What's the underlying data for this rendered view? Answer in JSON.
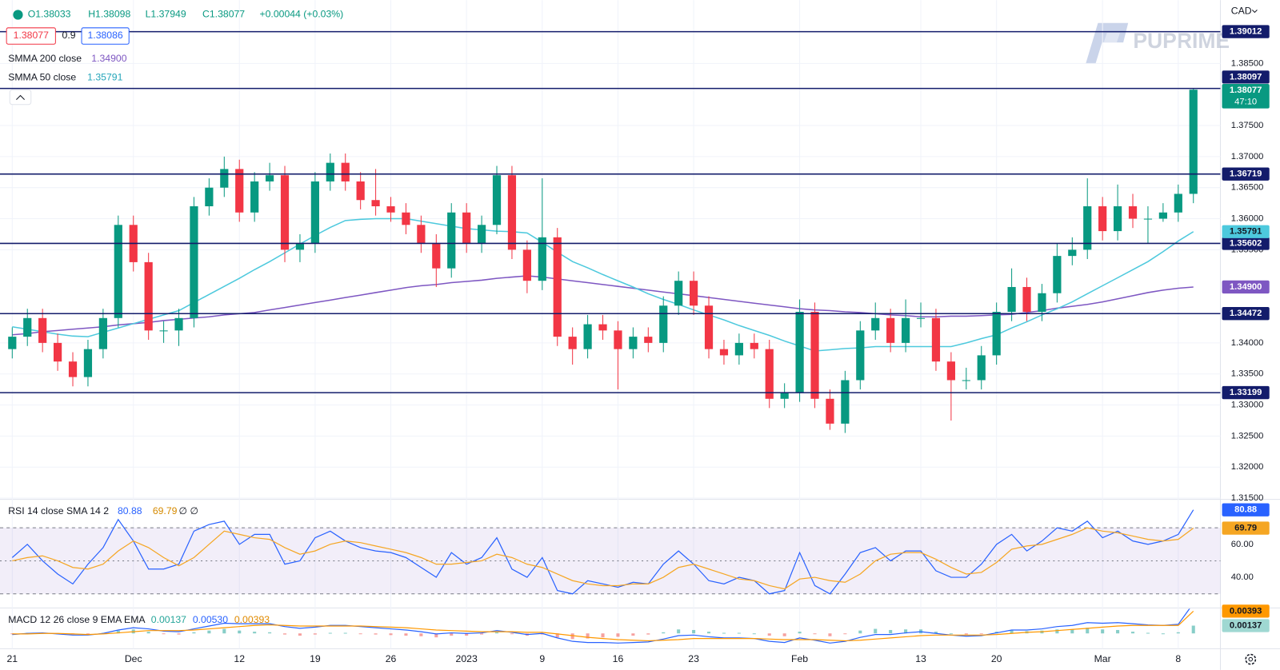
{
  "header": {
    "ohlc": [
      "O1.38033",
      "H1.38098",
      "L1.37949",
      "C1.38077"
    ],
    "change": "+0.00044 (+0.03%)",
    "currency": "CAD",
    "bid": "1.38077",
    "spread": "0.9",
    "ask": "1.38086"
  },
  "brand": "PUPRIME",
  "chart_data": [
    {
      "type": "candlestick",
      "categories": [
        "21",
        null,
        null,
        null,
        null,
        null,
        null,
        null,
        "Dec",
        null,
        null,
        null,
        null,
        null,
        null,
        "12",
        null,
        null,
        null,
        null,
        "19",
        null,
        null,
        null,
        null,
        "26",
        null,
        null,
        null,
        null,
        "2023",
        null,
        null,
        null,
        null,
        "9",
        null,
        null,
        null,
        null,
        "16",
        null,
        null,
        null,
        null,
        "23",
        null,
        null,
        null,
        null,
        null,
        null,
        "Feb",
        null,
        null,
        null,
        null,
        null,
        null,
        null,
        "13",
        null,
        null,
        null,
        null,
        "20",
        null,
        null,
        null,
        null,
        null,
        null,
        "Mar",
        null,
        null,
        null,
        null,
        "8",
        null
      ],
      "open": [
        1.339,
        1.341,
        1.344,
        1.34,
        1.337,
        1.3345,
        1.339,
        1.344,
        1.359,
        1.353,
        1.342,
        1.342,
        1.344,
        1.362,
        1.365,
        1.368,
        1.361,
        1.366,
        1.367,
        1.355,
        1.356,
        1.366,
        1.369,
        1.366,
        1.363,
        1.362,
        1.361,
        1.359,
        1.356,
        1.352,
        1.361,
        1.356,
        1.359,
        1.367,
        1.355,
        1.35,
        1.357,
        1.341,
        1.339,
        1.343,
        1.342,
        1.339,
        1.341,
        1.34,
        1.346,
        1.35,
        1.346,
        1.339,
        1.338,
        1.34,
        1.339,
        1.331,
        1.332,
        1.345,
        1.331,
        1.327,
        1.334,
        1.342,
        1.344,
        1.34,
        1.344,
        1.344,
        1.337,
        1.334,
        1.334,
        1.338,
        1.345,
        1.349,
        1.345,
        1.348,
        1.354,
        1.355,
        1.362,
        1.358,
        1.362,
        1.36,
        1.36,
        1.361,
        1.364
      ],
      "high": [
        1.3425,
        1.3455,
        1.3455,
        1.3415,
        1.3385,
        1.3405,
        1.3455,
        1.3605,
        1.3605,
        1.3545,
        1.3435,
        1.3455,
        1.3635,
        1.3665,
        1.37,
        1.3695,
        1.3675,
        1.369,
        1.3685,
        1.3575,
        1.3675,
        1.3705,
        1.3705,
        1.3675,
        1.368,
        1.3635,
        1.3625,
        1.3605,
        1.3575,
        1.3625,
        1.3625,
        1.3605,
        1.3685,
        1.3685,
        1.3565,
        1.3665,
        1.3585,
        1.3425,
        1.3445,
        1.3445,
        1.3435,
        1.3425,
        1.3425,
        1.3475,
        1.3515,
        1.3515,
        1.3475,
        1.3405,
        1.3415,
        1.3415,
        1.3405,
        1.3335,
        1.347,
        1.3465,
        1.3325,
        1.3355,
        1.3435,
        1.3465,
        1.3455,
        1.347,
        1.3465,
        1.3455,
        1.3385,
        1.336,
        1.3395,
        1.3465,
        1.352,
        1.3505,
        1.3495,
        1.356,
        1.357,
        1.3665,
        1.3635,
        1.3655,
        1.364,
        1.362,
        1.3625,
        1.3655,
        1.381
      ],
      "low": [
        1.3375,
        1.3395,
        1.3385,
        1.3355,
        1.333,
        1.333,
        1.3375,
        1.3425,
        1.3515,
        1.3405,
        1.34,
        1.3395,
        1.3425,
        1.3605,
        1.3635,
        1.3595,
        1.3595,
        1.3645,
        1.353,
        1.353,
        1.3545,
        1.3645,
        1.3645,
        1.3615,
        1.3605,
        1.3595,
        1.3575,
        1.3545,
        1.349,
        1.3505,
        1.3545,
        1.3545,
        1.3575,
        1.3535,
        1.348,
        1.3485,
        1.3395,
        1.3365,
        1.3375,
        1.3405,
        1.3325,
        1.3375,
        1.3385,
        1.3385,
        1.3445,
        1.3445,
        1.3375,
        1.3365,
        1.3365,
        1.3375,
        1.3295,
        1.3295,
        1.3305,
        1.3295,
        1.326,
        1.3255,
        1.3325,
        1.3405,
        1.3385,
        1.3385,
        1.3425,
        1.3355,
        1.3275,
        1.3325,
        1.3325,
        1.3365,
        1.3435,
        1.3435,
        1.3435,
        1.3465,
        1.3525,
        1.3535,
        1.3565,
        1.3565,
        1.3585,
        1.356,
        1.3595,
        1.3595,
        1.3625
      ],
      "close": [
        1.341,
        1.344,
        1.34,
        1.337,
        1.3345,
        1.339,
        1.344,
        1.359,
        1.353,
        1.342,
        1.342,
        1.344,
        1.362,
        1.365,
        1.368,
        1.361,
        1.366,
        1.367,
        1.355,
        1.356,
        1.366,
        1.369,
        1.366,
        1.363,
        1.362,
        1.361,
        1.359,
        1.356,
        1.352,
        1.361,
        1.356,
        1.359,
        1.367,
        1.355,
        1.35,
        1.357,
        1.341,
        1.339,
        1.343,
        1.342,
        1.339,
        1.341,
        1.34,
        1.346,
        1.35,
        1.346,
        1.339,
        1.338,
        1.34,
        1.339,
        1.331,
        1.332,
        1.345,
        1.331,
        1.327,
        1.334,
        1.342,
        1.344,
        1.34,
        1.344,
        1.344,
        1.337,
        1.334,
        1.334,
        1.338,
        1.345,
        1.349,
        1.345,
        1.348,
        1.354,
        1.355,
        1.362,
        1.358,
        1.362,
        1.36,
        1.36,
        1.361,
        1.364,
        1.38077
      ],
      "up_color": "#089981",
      "down_color": "#f23645",
      "countdown": "47:10",
      "ylim": [
        1.3148,
        1.3952
      ],
      "yticks": [
        {
          "value": 1.385,
          "label": "1.38500"
        },
        {
          "value": 1.375,
          "label": "1.37500"
        },
        {
          "value": 1.37,
          "label": "1.37000"
        },
        {
          "value": 1.365,
          "label": "1.36500"
        },
        {
          "value": 1.36,
          "label": "1.36000"
        },
        {
          "value": 1.355,
          "label": "1.35500"
        },
        {
          "value": 1.34,
          "label": "1.34000"
        },
        {
          "value": 1.335,
          "label": "1.33500"
        },
        {
          "value": 1.33,
          "label": "1.33000"
        },
        {
          "value": 1.325,
          "label": "1.32500"
        },
        {
          "value": 1.32,
          "label": "1.32000"
        },
        {
          "value": 1.315,
          "label": "1.31500"
        }
      ],
      "grid": true,
      "levels": [
        1.39012,
        1.38097,
        1.36719,
        1.35602,
        1.34472,
        1.33199
      ],
      "level_color": "#131c6b",
      "series": [
        {
          "name": "SMMA 200 close",
          "color": "#7e57c2",
          "last": {
            "value": 1.349,
            "label": "1.34900"
          },
          "values": [
            1.3413,
            1.3415,
            1.3418,
            1.342,
            1.3422,
            1.3424,
            1.3426,
            1.3429,
            1.3431,
            1.3433,
            1.3436,
            1.3438,
            1.344,
            1.3442,
            1.3445,
            1.3447,
            1.3449,
            1.3453,
            1.3457,
            1.3461,
            1.3465,
            1.3469,
            1.3473,
            1.3477,
            1.3481,
            1.3485,
            1.3489,
            1.3492,
            1.3494,
            1.3497,
            1.3499,
            1.3501,
            1.3504,
            1.3506,
            1.3508,
            1.3506,
            1.3503,
            1.35,
            1.3497,
            1.3494,
            1.3491,
            1.3488,
            1.3485,
            1.3482,
            1.3479,
            1.3476,
            1.3473,
            1.347,
            1.3467,
            1.3464,
            1.3461,
            1.3458,
            1.3455,
            1.3453,
            1.3452,
            1.345,
            1.3449,
            1.3447,
            1.3445,
            1.3444,
            1.3442,
            1.3442,
            1.3443,
            1.3443,
            1.3444,
            1.3445,
            1.3446,
            1.3449,
            1.3452,
            1.3456,
            1.3459,
            1.3462,
            1.3466,
            1.3471,
            1.3476,
            1.3481,
            1.3485,
            1.3488,
            1.349
          ]
        },
        {
          "name": "SMMA 50 close",
          "color": "#4dc9dd",
          "last": 1.35791,
          "values": [
            1.3426,
            1.3422,
            1.3418,
            1.3414,
            1.3411,
            1.341,
            1.3417,
            1.3424,
            1.3431,
            1.3438,
            1.3445,
            1.3452,
            1.3465,
            1.3478,
            1.3491,
            1.3504,
            1.3518,
            1.3531,
            1.3545,
            1.3559,
            1.3573,
            1.3586,
            1.3597,
            1.3599,
            1.36,
            1.36,
            1.36,
            1.3596,
            1.3592,
            1.3588,
            1.3584,
            1.3582,
            1.358,
            1.3579,
            1.3577,
            1.3562,
            1.3546,
            1.3531,
            1.3521,
            1.351,
            1.35,
            1.349,
            1.3479,
            1.347,
            1.3462,
            1.3453,
            1.3445,
            1.3437,
            1.3428,
            1.342,
            1.3412,
            1.3403,
            1.3395,
            1.3387,
            1.3389,
            1.3391,
            1.3392,
            1.3394,
            1.3394,
            1.3394,
            1.3394,
            1.3394,
            1.3394,
            1.34,
            1.3407,
            1.3413,
            1.3424,
            1.3434,
            1.3445,
            1.3455,
            1.3466,
            1.3479,
            1.3492,
            1.3505,
            1.3518,
            1.3531,
            1.3547,
            1.3564,
            1.35791
          ]
        }
      ]
    },
    {
      "type": "line",
      "title": "RSI 14 close SMA 14 2",
      "extra": "∅ ∅",
      "ylim": [
        21.5,
        87.2
      ],
      "yticks": [
        {
          "value": 60,
          "label": "60.00"
        },
        {
          "value": 40,
          "label": "40.00"
        }
      ],
      "levels": [
        70,
        50,
        30
      ],
      "band_color": "rgba(126,87,194,0.1)",
      "series": [
        {
          "color": "#2962ff",
          "values": [
            52,
            60,
            50,
            42,
            36,
            48,
            58,
            75,
            62,
            45,
            45,
            48,
            68,
            72,
            74,
            60,
            66,
            66,
            48,
            50,
            64,
            68,
            62,
            58,
            56,
            55,
            52,
            46,
            40,
            55,
            48,
            52,
            64,
            45,
            40,
            52,
            32,
            30,
            38,
            36,
            34,
            37,
            36,
            48,
            56,
            48,
            38,
            36,
            40,
            38,
            30,
            32,
            55,
            35,
            30,
            42,
            55,
            58,
            50,
            56,
            56,
            44,
            40,
            40,
            48,
            60,
            66,
            56,
            62,
            70,
            68,
            74,
            64,
            68,
            62,
            60,
            62,
            66,
            80.88
          ]
        },
        {
          "color": "#f5a623",
          "values": [
            50,
            52,
            53,
            50,
            46,
            45,
            48,
            56,
            62,
            58,
            52,
            47,
            52,
            60,
            68,
            66,
            64,
            63,
            58,
            54,
            56,
            60,
            62,
            61,
            59,
            57,
            55,
            52,
            48,
            48,
            49,
            50,
            54,
            52,
            48,
            46,
            42,
            38,
            36,
            35,
            35,
            36,
            36,
            40,
            46,
            48,
            45,
            42,
            39,
            38,
            35,
            33,
            39,
            40,
            38,
            37,
            42,
            50,
            54,
            55,
            55,
            51,
            46,
            42,
            43,
            49,
            57,
            59,
            60,
            63,
            66,
            70,
            68,
            67,
            65,
            63,
            62,
            63,
            69.79
          ]
        }
      ]
    },
    {
      "type": "macd",
      "title": "MACD 12 26 close 9 EMA EMA",
      "ylim": [
        -0.0027,
        0.0045
      ],
      "series": [
        {
          "type": "bar",
          "color": "#9fd8d2",
          "up_color": "#26a69a",
          "down_color": "#ef5350",
          "values": [
            -0.0001,
            0.0001,
            0.0001,
            -0.0001,
            -0.0002,
            -0.0001,
            0.0001,
            0.0005,
            0.0007,
            0.0003,
            -0.0001,
            -0.0002,
            0.0002,
            0.0005,
            0.0008,
            0.0005,
            0.0003,
            0.0002,
            -0.0002,
            -0.0004,
            -0.0002,
            0.0001,
            0.0001,
            -0.0001,
            -0.0002,
            -0.0003,
            -0.0004,
            -0.0005,
            -0.0007,
            -0.0004,
            -0.0004,
            -0.0002,
            0.0002,
            -0.0001,
            -0.0004,
            -0.0002,
            -0.0007,
            -0.001,
            -0.0009,
            -0.0007,
            -0.0006,
            -0.0004,
            -0.0002,
            0.0002,
            0.0007,
            0.0006,
            0.0003,
            0.0001,
            0.0001,
            0,
            -0.0004,
            -0.0005,
            0.0003,
            -0.0001,
            -0.0005,
            -0.0001,
            0.0005,
            0.0008,
            0.0006,
            0.0007,
            0.0007,
            0.0003,
            0,
            -0.0002,
            -0.0001,
            0.0003,
            0.0006,
            0.0004,
            0.0005,
            0.0007,
            0.0007,
            0.001,
            0.0007,
            0.0006,
            0.0003,
            0.0001,
            0,
            0.0002,
            0.00137
          ]
        },
        {
          "type": "line",
          "color": "#2962ff",
          "last": {
            "value": 0.0053,
            "label": "0.00530"
          },
          "values": [
            -0.0002,
            0,
            0.0001,
            -0.0001,
            -0.0003,
            -0.0003,
            0,
            0.0006,
            0.001,
            0.0008,
            0.0004,
            0.0003,
            0.0008,
            0.0013,
            0.0018,
            0.0017,
            0.0017,
            0.0017,
            0.0012,
            0.0009,
            0.0011,
            0.0014,
            0.0014,
            0.0012,
            0.001,
            0.0008,
            0.0006,
            0.0003,
            -0.0001,
            0.0001,
            0,
            0.0001,
            0.0005,
            0.0002,
            -0.0002,
            0,
            -0.0008,
            -0.0014,
            -0.0016,
            -0.0016,
            -0.0017,
            -0.0016,
            -0.0015,
            -0.001,
            -0.0004,
            -0.0003,
            -0.0006,
            -0.0008,
            -0.0008,
            -0.0009,
            -0.0014,
            -0.0016,
            -0.0008,
            -0.0012,
            -0.0017,
            -0.0014,
            -0.0007,
            -0.0002,
            -0.0002,
            0.0001,
            0.0003,
            0,
            -0.0003,
            -0.0005,
            -0.0004,
            0.0001,
            0.0006,
            0.0006,
            0.0008,
            0.0012,
            0.0014,
            0.0019,
            0.0018,
            0.0019,
            0.0017,
            0.0015,
            0.0014,
            0.0016,
            0.0053
          ]
        },
        {
          "type": "line",
          "color": "#ff9800",
          "values": [
            -0.0001,
            -0.0001,
            0,
            0,
            -0.0001,
            -0.0002,
            -0.0001,
            0.0001,
            0.0003,
            0.0005,
            0.0005,
            0.0005,
            0.0006,
            0.0008,
            0.001,
            0.0012,
            0.0014,
            0.0015,
            0.0014,
            0.0013,
            0.0013,
            0.0013,
            0.0013,
            0.0013,
            0.0012,
            0.0011,
            0.001,
            0.0008,
            0.0006,
            0.0005,
            0.0004,
            0.0003,
            0.0003,
            0.0003,
            0.0002,
            0.0002,
            -0.0001,
            -0.0004,
            -0.0007,
            -0.0009,
            -0.0011,
            -0.0012,
            -0.0013,
            -0.0012,
            -0.0011,
            -0.0009,
            -0.0009,
            -0.0009,
            -0.0009,
            -0.0009,
            -0.001,
            -0.0011,
            -0.0011,
            -0.0011,
            -0.0012,
            -0.0013,
            -0.0012,
            -0.001,
            -0.0008,
            -0.0006,
            -0.0004,
            -0.0003,
            -0.0003,
            -0.0003,
            -0.0003,
            -0.0002,
            0,
            0.0002,
            0.0003,
            0.0005,
            0.0007,
            0.0009,
            0.0011,
            0.0013,
            0.0014,
            0.0014,
            0.0014,
            0.0014,
            0.00393
          ]
        }
      ]
    }
  ]
}
